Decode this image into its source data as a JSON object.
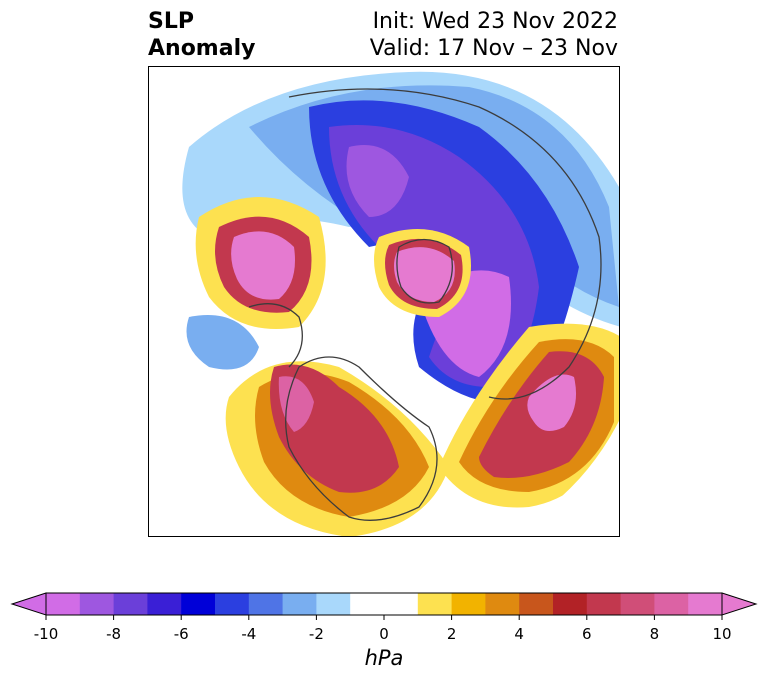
{
  "title": {
    "left_line1": "SLP",
    "left_line2": "Anomaly",
    "right_line1": "Init: Wed 23 Nov 2022",
    "right_line2": "Valid: 17 Nov – 23 Nov"
  },
  "colorbar": {
    "unit": "hPa",
    "ticks": [
      "-10",
      "-8",
      "-6",
      "-4",
      "-2",
      "0",
      "2",
      "4",
      "6",
      "8",
      "10"
    ],
    "colors": [
      "#d16ce6",
      "#9e57e0",
      "#6b3fd9",
      "#3a1fd6",
      "#0000d8",
      "#2b3fe0",
      "#4f74e6",
      "#79aef0",
      "#a9d8fb",
      "#ffffff",
      "#ffffff",
      "#fde150",
      "#f2b300",
      "#df8a10",
      "#c8561c",
      "#b22226",
      "#c2384e",
      "#d04e78",
      "#dc62a4",
      "#e57ad0"
    ],
    "extend_low_color": "#d16ce6",
    "extend_high_color": "#e57ad0"
  }
}
